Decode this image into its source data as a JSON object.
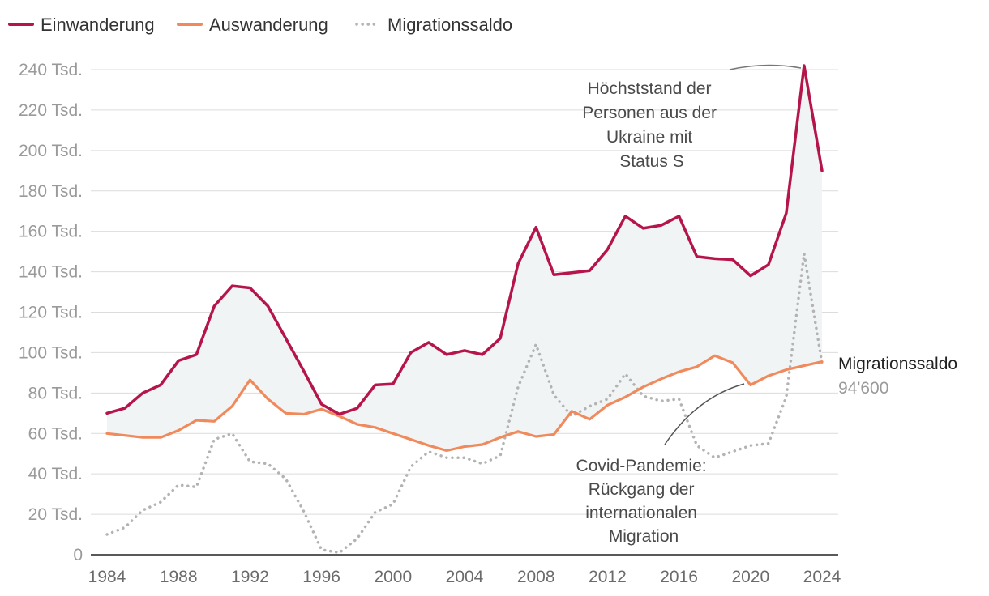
{
  "chart_data": {
    "type": "line",
    "title": "",
    "xlabel": "",
    "ylabel": "",
    "ylim": [
      0,
      240000
    ],
    "grid": true,
    "legend_position": "top-left",
    "x": [
      1984,
      1985,
      1986,
      1987,
      1988,
      1989,
      1990,
      1991,
      1992,
      1993,
      1994,
      1995,
      1996,
      1997,
      1998,
      1999,
      2000,
      2001,
      2002,
      2003,
      2004,
      2005,
      2006,
      2007,
      2008,
      2009,
      2010,
      2011,
      2012,
      2013,
      2014,
      2015,
      2016,
      2017,
      2018,
      2019,
      2020,
      2021,
      2022,
      2023,
      2024
    ],
    "x_ticks": [
      1984,
      1988,
      1992,
      1996,
      2000,
      2004,
      2008,
      2012,
      2016,
      2020,
      2024
    ],
    "y_ticks": [
      {
        "value": 0,
        "label": "0"
      },
      {
        "value": 20000,
        "label": "20 Tsd."
      },
      {
        "value": 40000,
        "label": "40 Tsd."
      },
      {
        "value": 60000,
        "label": "60 Tsd."
      },
      {
        "value": 80000,
        "label": "80 Tsd."
      },
      {
        "value": 100000,
        "label": "100 Tsd."
      },
      {
        "value": 120000,
        "label": "120 Tsd."
      },
      {
        "value": 140000,
        "label": "140 Tsd."
      },
      {
        "value": 160000,
        "label": "160 Tsd."
      },
      {
        "value": 180000,
        "label": "180 Tsd."
      },
      {
        "value": 200000,
        "label": "200 Tsd."
      },
      {
        "value": 220000,
        "label": "220 Tsd."
      },
      {
        "value": 240000,
        "label": "240 Tsd."
      }
    ],
    "series": [
      {
        "name": "Einwanderung",
        "color": "#b5154b",
        "style": "solid",
        "values": [
          70000,
          72500,
          80000,
          84000,
          96000,
          99000,
          123000,
          133000,
          132000,
          123000,
          107000,
          91000,
          74500,
          69500,
          72500,
          84000,
          84500,
          100000,
          105000,
          99000,
          101000,
          99000,
          107000,
          144000,
          162000,
          138500,
          139500,
          140500,
          151000,
          167500,
          161500,
          163000,
          167500,
          147500,
          146500,
          146000,
          138000,
          143500,
          169000,
          242000,
          190000
        ]
      },
      {
        "name": "Auswanderung",
        "color": "#f08a5d",
        "style": "solid",
        "values": [
          60000,
          59000,
          58000,
          58000,
          61500,
          66500,
          66000,
          73500,
          86500,
          77000,
          70000,
          69500,
          72000,
          68500,
          64500,
          63000,
          60000,
          57000,
          54000,
          51500,
          53500,
          54500,
          58000,
          61000,
          58500,
          59500,
          71000,
          67000,
          74000,
          78000,
          83000,
          87000,
          90500,
          93000,
          98500,
          95000,
          84000,
          88500,
          91500,
          93500,
          95500
        ]
      },
      {
        "name": "Migrationssaldo",
        "color": "#b3b3b3",
        "style": "dotted",
        "values": [
          10000,
          13500,
          22000,
          26000,
          34500,
          33500,
          57000,
          60000,
          46000,
          45000,
          37500,
          21500,
          2500,
          1000,
          8000,
          21000,
          25000,
          43500,
          51000,
          48000,
          48000,
          45000,
          49000,
          83000,
          104000,
          79000,
          68500,
          73500,
          77000,
          89500,
          78500,
          76000,
          77000,
          54000,
          48000,
          51000,
          54000,
          55000,
          78000,
          149000,
          94600
        ]
      }
    ],
    "annotations": [
      {
        "lines": [
          "Höchststand der",
          "Personen aus der",
          "Ukraine mit",
          "Status S"
        ],
        "target_x": 2023,
        "target_y": 242000
      },
      {
        "lines": [
          "Covid-Pandemie:",
          "Rückgang der",
          "internationalen",
          "Migration"
        ],
        "target_x": 2020,
        "target_y": 84000
      }
    ],
    "end_label": {
      "name": "Migrationssaldo",
      "value": "94'600"
    }
  }
}
